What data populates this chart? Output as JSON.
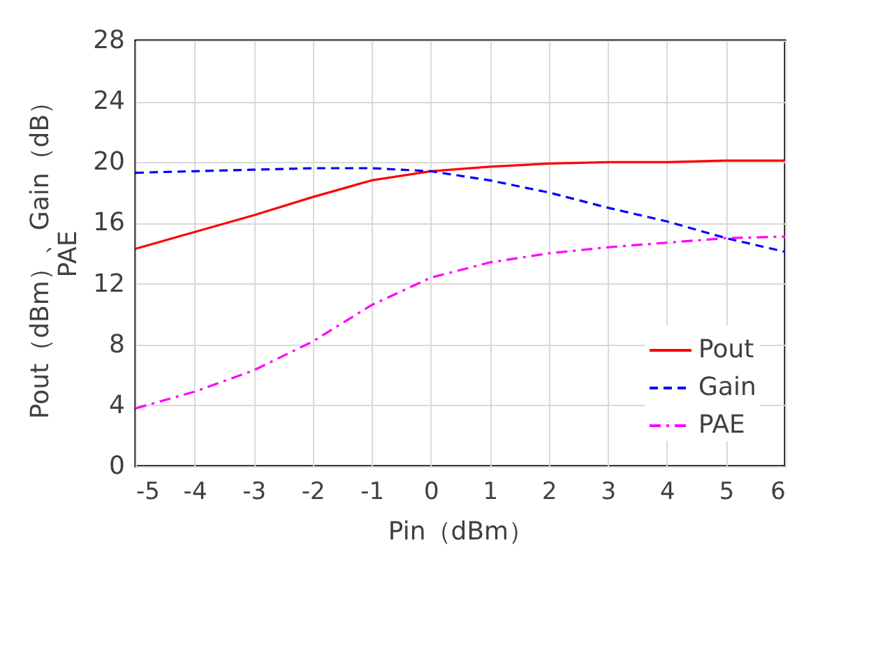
{
  "chart_data": {
    "type": "line",
    "xlabel": "Pin（dBm）",
    "ylabel": [
      "Pout（dBm）、Gain（dB）",
      "PAE"
    ],
    "x": [
      -5,
      -4,
      -3,
      -2,
      -1,
      0,
      1,
      2,
      3,
      4,
      5,
      6
    ],
    "series": [
      {
        "name": "Pout",
        "color": "#ff0000",
        "line_style": "solid",
        "values": [
          14.3,
          15.4,
          16.5,
          17.7,
          18.8,
          19.4,
          19.7,
          19.9,
          20.0,
          20.0,
          20.1,
          20.1
        ]
      },
      {
        "name": "Gain",
        "color": "#0000ff",
        "line_style": "dashed",
        "values": [
          19.3,
          19.4,
          19.5,
          19.6,
          19.6,
          19.4,
          18.8,
          18.0,
          17.0,
          16.1,
          15.0,
          14.1
        ]
      },
      {
        "name": "PAE",
        "color": "#ff00ff",
        "line_style": "dashdot",
        "values": [
          3.8,
          4.9,
          6.3,
          8.2,
          10.6,
          12.4,
          13.4,
          14.0,
          14.4,
          14.7,
          15.0,
          15.1
        ]
      }
    ],
    "xlim": [
      -5,
      6
    ],
    "xticks": [
      -5,
      -4,
      -3,
      -2,
      -1,
      0,
      1,
      2,
      3,
      4,
      5,
      6
    ],
    "ylim": [
      0,
      28
    ],
    "yticks": [
      0,
      4,
      8,
      12,
      16,
      20,
      24,
      28
    ],
    "grid": true,
    "legend": "bottom right",
    "marker": "none"
  }
}
